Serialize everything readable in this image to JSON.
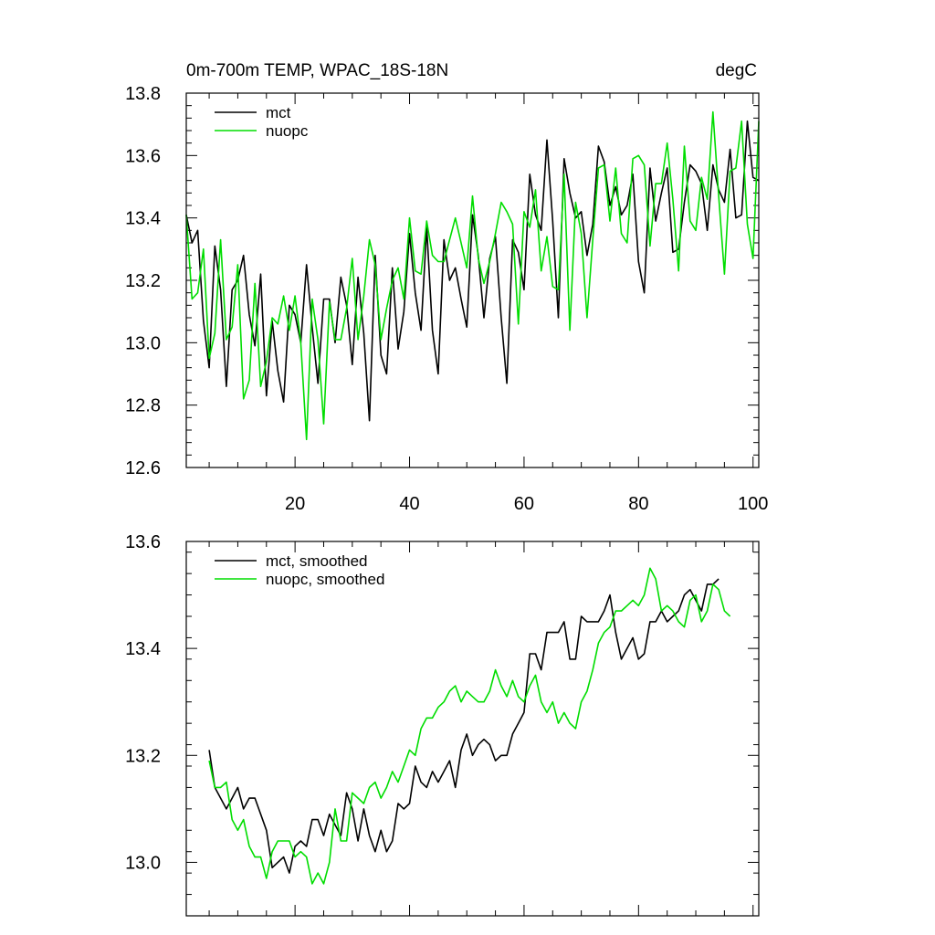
{
  "chart_data": [
    {
      "type": "line",
      "title": "0m-700m TEMP, WPAC_18S-18N",
      "units_label": "degC",
      "xlabel": "",
      "ylabel": "",
      "xlim": [
        1,
        101
      ],
      "ylim": [
        12.6,
        13.8
      ],
      "xticks": [
        20,
        40,
        60,
        80,
        100
      ],
      "xtick_labels": [
        "20",
        "40",
        "60",
        "80",
        "100"
      ],
      "yticks": [
        12.6,
        12.8,
        13.0,
        13.2,
        13.4,
        13.6,
        13.8
      ],
      "ytick_labels": [
        "12.6",
        "12.8",
        "13.0",
        "13.2",
        "13.4",
        "13.6",
        "13.8"
      ],
      "grid": false,
      "legend_position": "top-left",
      "series": [
        {
          "name": "mct",
          "color": "#000000",
          "x_start": 1,
          "values": [
            13.41,
            13.32,
            13.36,
            13.07,
            12.92,
            13.31,
            13.17,
            12.86,
            13.17,
            13.2,
            13.28,
            13.09,
            12.99,
            13.22,
            12.83,
            13.07,
            12.91,
            12.81,
            13.12,
            13.09,
            13.0,
            13.25,
            13.05,
            12.87,
            13.14,
            13.14,
            13.0,
            13.21,
            13.12,
            12.93,
            13.21,
            13.03,
            12.75,
            13.28,
            12.96,
            12.9,
            13.24,
            12.98,
            13.1,
            13.35,
            13.16,
            13.04,
            13.37,
            13.04,
            12.9,
            13.33,
            13.2,
            13.24,
            13.14,
            13.05,
            13.41,
            13.28,
            13.08,
            13.27,
            13.34,
            13.08,
            12.87,
            13.33,
            13.29,
            13.17,
            13.54,
            13.41,
            13.36,
            13.65,
            13.39,
            13.08,
            13.59,
            13.48,
            13.4,
            13.42,
            13.28,
            13.38,
            13.63,
            13.58,
            13.44,
            13.5,
            13.41,
            13.44,
            13.54,
            13.26,
            13.16,
            13.56,
            13.39,
            13.48,
            13.56,
            13.29,
            13.3,
            13.45,
            13.57,
            13.55,
            13.51,
            13.36,
            13.57,
            13.49,
            13.45,
            13.62,
            13.4,
            13.41,
            13.71,
            13.53,
            13.52
          ]
        },
        {
          "name": "nuopc",
          "color": "#00dd00",
          "x_start": 1,
          "values": [
            13.41,
            13.14,
            13.16,
            13.3,
            12.95,
            13.03,
            13.33,
            13.01,
            13.05,
            13.25,
            12.82,
            12.88,
            13.19,
            12.86,
            12.94,
            13.08,
            13.06,
            13.15,
            13.04,
            13.15,
            13.0,
            12.69,
            13.14,
            13.01,
            12.74,
            13.13,
            13.01,
            13.01,
            13.11,
            13.27,
            13.01,
            13.15,
            13.33,
            13.25,
            13.01,
            13.11,
            13.2,
            13.24,
            13.14,
            13.4,
            13.23,
            13.22,
            13.39,
            13.28,
            13.26,
            13.26,
            13.33,
            13.4,
            13.32,
            13.24,
            13.47,
            13.27,
            13.19,
            13.26,
            13.35,
            13.45,
            13.42,
            13.38,
            13.06,
            13.42,
            13.37,
            13.49,
            13.23,
            13.34,
            13.18,
            13.17,
            13.54,
            13.04,
            13.45,
            13.35,
            13.08,
            13.33,
            13.56,
            13.57,
            13.39,
            13.56,
            13.35,
            13.32,
            13.59,
            13.6,
            13.57,
            13.31,
            13.51,
            13.51,
            13.64,
            13.46,
            13.23,
            13.63,
            13.39,
            13.36,
            13.53,
            13.46,
            13.74,
            13.47,
            13.22,
            13.55,
            13.56,
            13.71,
            13.38,
            13.27,
            13.71
          ]
        }
      ]
    },
    {
      "type": "line",
      "title": "",
      "xlabel": "",
      "ylabel": "",
      "xlim": [
        1,
        101
      ],
      "ylim": [
        12.9,
        13.6
      ],
      "xticks": [
        20,
        40,
        60,
        80,
        100
      ],
      "xtick_labels": [],
      "yticks": [
        13.0,
        13.2,
        13.4,
        13.6
      ],
      "ytick_labels": [
        "13.0",
        "13.2",
        "13.4",
        "13.6"
      ],
      "grid": false,
      "legend_position": "top-left",
      "series": [
        {
          "name": "mct, smoothed",
          "color": "#000000",
          "x_start": 5,
          "values": [
            13.21,
            13.14,
            13.12,
            13.1,
            13.12,
            13.14,
            13.1,
            13.12,
            13.12,
            13.09,
            13.06,
            12.99,
            13.0,
            13.01,
            12.98,
            13.03,
            13.04,
            13.03,
            13.08,
            13.08,
            13.05,
            13.09,
            13.07,
            13.05,
            13.13,
            13.1,
            13.04,
            13.1,
            13.05,
            13.02,
            13.06,
            13.02,
            13.04,
            13.11,
            13.1,
            13.11,
            13.18,
            13.15,
            13.14,
            13.17,
            13.15,
            13.17,
            13.19,
            13.14,
            13.21,
            13.24,
            13.2,
            13.22,
            13.23,
            13.22,
            13.19,
            13.2,
            13.2,
            13.24,
            13.26,
            13.28,
            13.39,
            13.39,
            13.36,
            13.43,
            13.43,
            13.43,
            13.45,
            13.38,
            13.38,
            13.46,
            13.45,
            13.45,
            13.45,
            13.47,
            13.5,
            13.43,
            13.38,
            13.4,
            13.42,
            13.38,
            13.39,
            13.45,
            13.45,
            13.47,
            13.45,
            13.46,
            13.47,
            13.5,
            13.51,
            13.49,
            13.47,
            13.52,
            13.52,
            13.53
          ]
        },
        {
          "name": "nuopc, smoothed",
          "color": "#00dd00",
          "x_start": 5,
          "values": [
            13.19,
            13.14,
            13.14,
            13.15,
            13.08,
            13.06,
            13.08,
            13.03,
            13.01,
            13.01,
            12.97,
            13.02,
            13.04,
            13.04,
            13.04,
            13.01,
            13.02,
            13.01,
            12.96,
            12.98,
            12.96,
            13.0,
            13.1,
            13.04,
            13.04,
            13.13,
            13.12,
            13.11,
            13.14,
            13.15,
            13.12,
            13.14,
            13.17,
            13.15,
            13.18,
            13.21,
            13.2,
            13.25,
            13.27,
            13.27,
            13.29,
            13.3,
            13.32,
            13.33,
            13.3,
            13.32,
            13.31,
            13.3,
            13.3,
            13.32,
            13.36,
            13.33,
            13.31,
            13.34,
            13.31,
            13.3,
            13.33,
            13.35,
            13.3,
            13.28,
            13.3,
            13.26,
            13.28,
            13.26,
            13.25,
            13.3,
            13.32,
            13.36,
            13.41,
            13.43,
            13.44,
            13.47,
            13.47,
            13.48,
            13.49,
            13.48,
            13.5,
            13.55,
            13.53,
            13.47,
            13.48,
            13.47,
            13.45,
            13.44,
            13.49,
            13.5,
            13.45,
            13.47,
            13.52,
            13.51,
            13.47,
            13.46
          ]
        }
      ]
    }
  ]
}
